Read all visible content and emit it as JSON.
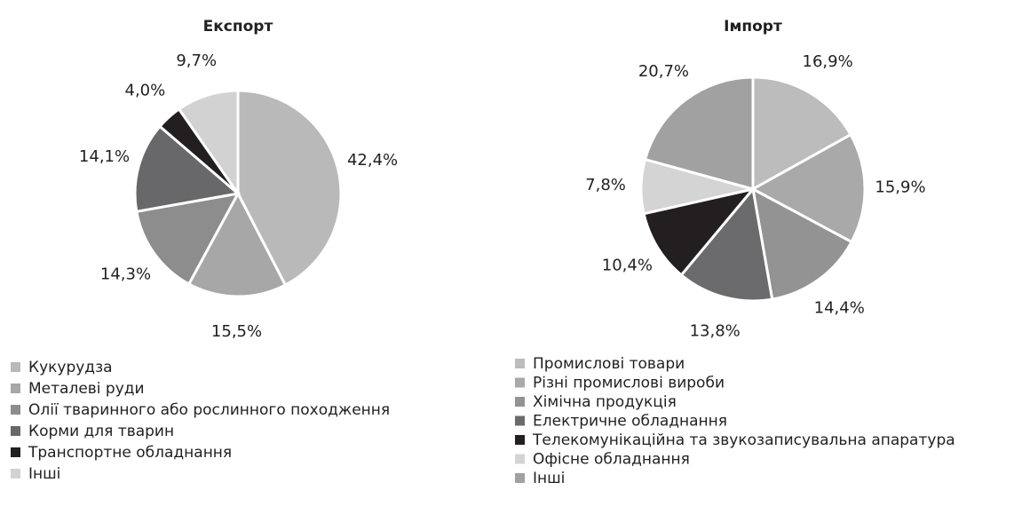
{
  "chart_data": [
    {
      "type": "pie",
      "title": "Експорт",
      "categories": [
        "Кукурудза",
        "Металеві руди",
        "Олії тваринного або рослинного походження",
        "Корми для тварин",
        "Транспортне обладнання",
        "Інші"
      ],
      "values": [
        42.4,
        15.5,
        14.3,
        14.1,
        4.0,
        9.7
      ],
      "value_labels": [
        "42,4%",
        "15,5%",
        "14,3%",
        "14,1%",
        "4,0%",
        "9,7%"
      ],
      "colors": [
        "#b9b9ba",
        "#a7a7a8",
        "#8d8d8e",
        "#68686a",
        "#231f20",
        "#d2d2d3"
      ]
    },
    {
      "type": "pie",
      "title": "Імпорт",
      "categories": [
        "Промислові товари",
        "Різні промислові вироби",
        "Хімічна продукція",
        "Електричне обладнання",
        "Телекомунікаційна та звукозаписувальна апаратура",
        "Офісне обладнання",
        "Інші"
      ],
      "values": [
        16.9,
        15.9,
        14.4,
        13.8,
        10.4,
        7.8,
        20.7
      ],
      "value_labels": [
        "16,9%",
        "15,9%",
        "14,4%",
        "13,8%",
        "10,4%",
        "7,8%",
        "20,7%"
      ],
      "colors": [
        "#bcbcbd",
        "#a9a9aa",
        "#939394",
        "#6b6b6d",
        "#231f20",
        "#d4d4d5",
        "#a1a1a2"
      ]
    }
  ]
}
